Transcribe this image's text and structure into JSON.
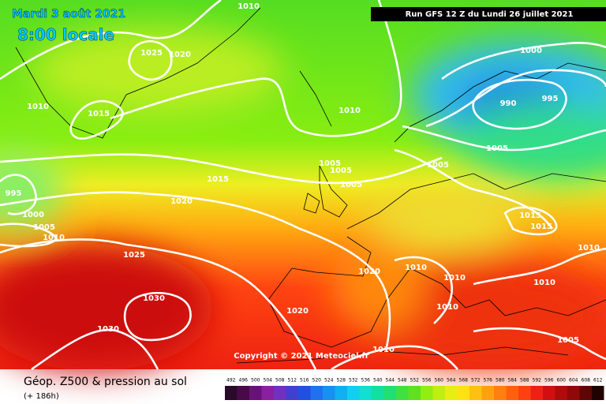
{
  "header": {
    "date": "Mardi 3 août 2021",
    "time": "8:00 locale",
    "run": "Run GFS 12 Z du Lundi 26 juillet 2021"
  },
  "isobars": {
    "labels": [
      1010,
      1025,
      1020,
      1010,
      1015,
      1010,
      1000,
      990,
      995,
      1005,
      1005,
      1005,
      1005,
      1005,
      1015,
      1020,
      995,
      1000,
      1005,
      1010,
      1025,
      1015,
      1015,
      1010,
      1020,
      1010,
      1010,
      1010,
      1010,
      1030,
      1030,
      1020,
      1010,
      1005
    ]
  },
  "copyright": "Copyright © 2021 Meteociel.fr",
  "footer": {
    "title": "Géop. Z500 & pression au sol",
    "lead": "(+ 186h)"
  },
  "scale": {
    "labels": [
      492,
      496,
      500,
      504,
      508,
      512,
      516,
      520,
      524,
      528,
      532,
      536,
      540,
      544,
      548,
      552,
      556,
      560,
      564,
      568,
      572,
      576,
      580,
      584,
      588,
      592,
      596,
      600,
      604,
      608,
      612
    ]
  }
}
